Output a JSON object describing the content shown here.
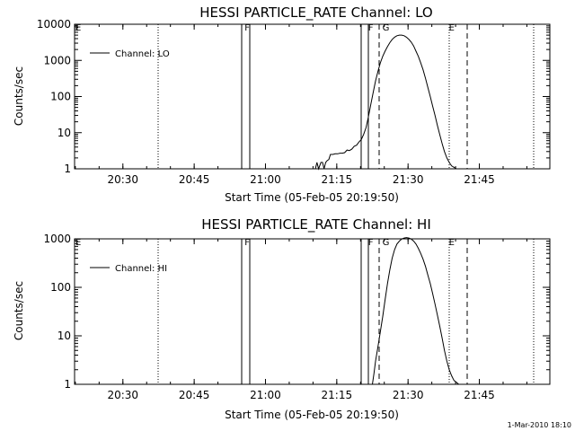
{
  "chart_data": [
    {
      "type": "line",
      "title": "HESSI PARTICLE_RATE Channel: LO",
      "xlabel": "Start Time (05-Feb-05 20:19:50)",
      "ylabel": "Counts/sec",
      "y_scale": "log",
      "xlim": [
        "20:19:50",
        "21:59:50"
      ],
      "ylim": [
        1,
        10000
      ],
      "x_ticks": [
        "20:30",
        "20:45",
        "21:00",
        "21:15",
        "21:30",
        "21:45"
      ],
      "y_ticks": [
        "1",
        "10",
        "100",
        "1000",
        "10000"
      ],
      "legend": {
        "placement": "top-left",
        "entries": [
          "Channel: LO"
        ]
      },
      "series": [
        {
          "name": "Channel: LO",
          "x": [
            "21:10:30",
            "21:10:50",
            "21:11:10",
            "21:11:40",
            "21:12:00",
            "21:12:20",
            "21:12:40",
            "21:13:00",
            "21:13:20",
            "21:13:40",
            "21:14:10",
            "21:14:40",
            "21:15:10",
            "21:15:40",
            "21:16:10",
            "21:16:40",
            "21:17:10",
            "21:17:40",
            "21:18:10",
            "21:18:40",
            "21:19:10",
            "21:19:40",
            "21:20:10",
            "21:20:40",
            "21:21:10",
            "21:21:40",
            "21:22:10",
            "21:22:40",
            "21:23:10",
            "21:23:40",
            "21:24:10",
            "21:24:40",
            "21:25:10",
            "21:25:40",
            "21:26:10",
            "21:26:40",
            "21:27:10",
            "21:27:40",
            "21:28:10",
            "21:28:40",
            "21:29:10",
            "21:29:40",
            "21:30:10",
            "21:30:40",
            "21:31:10",
            "21:31:40",
            "21:32:10",
            "21:32:40",
            "21:33:10",
            "21:33:40",
            "21:34:10",
            "21:34:40",
            "21:35:10",
            "21:35:40",
            "21:36:10",
            "21:36:40",
            "21:37:10",
            "21:37:40",
            "21:38:10",
            "21:38:40",
            "21:39:10",
            "21:39:40",
            "21:40:10",
            "21:40:40",
            "21:41:10",
            "21:41:40"
          ],
          "y": [
            1,
            1.5,
            1,
            1.5,
            1.5,
            1,
            1.5,
            1.7,
            1.8,
            2.5,
            2.5,
            2.6,
            2.6,
            2.7,
            2.7,
            2.8,
            3.3,
            3.2,
            3.5,
            4.2,
            4.5,
            5.5,
            6.5,
            9,
            14,
            28,
            60,
            130,
            270,
            500,
            850,
            1300,
            1800,
            2400,
            3100,
            3800,
            4400,
            4800,
            5000,
            5000,
            4800,
            4400,
            3800,
            3200,
            2500,
            1800,
            1300,
            850,
            550,
            320,
            180,
            100,
            55,
            30,
            16,
            9,
            5,
            3,
            2,
            1.5,
            1.2,
            1.1,
            1,
            1,
            1,
            1
          ]
        }
      ],
      "markers": [
        {
          "label": "E",
          "x": "20:19:50"
        },
        {
          "label": "F",
          "x": "20:56:10"
        },
        {
          "label": "F",
          "x": "21:22:10"
        },
        {
          "label": "G",
          "x": "21:25:10"
        },
        {
          "label": "E",
          "x": "21:39:10"
        }
      ]
    },
    {
      "type": "line",
      "title": "HESSI PARTICLE_RATE Channel: HI",
      "xlabel": "Start Time (05-Feb-05 20:19:50)",
      "ylabel": "Counts/sec",
      "y_scale": "log",
      "xlim": [
        "20:19:50",
        "21:59:50"
      ],
      "ylim": [
        1,
        1000
      ],
      "x_ticks": [
        "20:30",
        "20:45",
        "21:00",
        "21:15",
        "21:30",
        "21:45"
      ],
      "y_ticks": [
        "1",
        "10",
        "100",
        "1000"
      ],
      "legend": {
        "placement": "top-left",
        "entries": [
          "Channel: HI"
        ]
      },
      "series": [
        {
          "name": "Channel: HI",
          "x": [
            "21:22:30",
            "21:22:50",
            "21:23:10",
            "21:23:40",
            "21:24:10",
            "21:24:40",
            "21:25:10",
            "21:25:40",
            "21:26:10",
            "21:26:40",
            "21:27:10",
            "21:27:40",
            "21:28:10",
            "21:28:40",
            "21:29:10",
            "21:29:40",
            "21:30:10",
            "21:30:40",
            "21:31:10",
            "21:31:40",
            "21:32:10",
            "21:32:40",
            "21:33:10",
            "21:33:40",
            "21:34:10",
            "21:34:40",
            "21:35:10",
            "21:35:40",
            "21:36:10",
            "21:36:40",
            "21:37:10",
            "21:37:40",
            "21:38:10",
            "21:38:40",
            "21:39:10",
            "21:39:40",
            "21:40:10",
            "21:40:40",
            "21:41:10"
          ],
          "y": [
            1,
            1.7,
            3,
            6,
            12,
            25,
            55,
            120,
            230,
            400,
            600,
            780,
            900,
            990,
            1040,
            1060,
            1040,
            990,
            900,
            780,
            640,
            500,
            380,
            270,
            180,
            120,
            75,
            45,
            27,
            16,
            9,
            5,
            3,
            2,
            1.5,
            1.2,
            1.1,
            1,
            1
          ]
        }
      ],
      "markers": [
        {
          "label": "E",
          "x": "20:19:50"
        },
        {
          "label": "F",
          "x": "20:56:10"
        },
        {
          "label": "F",
          "x": "21:22:10"
        },
        {
          "label": "G",
          "x": "21:25:10"
        },
        {
          "label": "E",
          "x": "21:39:10"
        }
      ]
    }
  ],
  "footer": {
    "timestamp": "1-Mar-2010 18:10"
  }
}
